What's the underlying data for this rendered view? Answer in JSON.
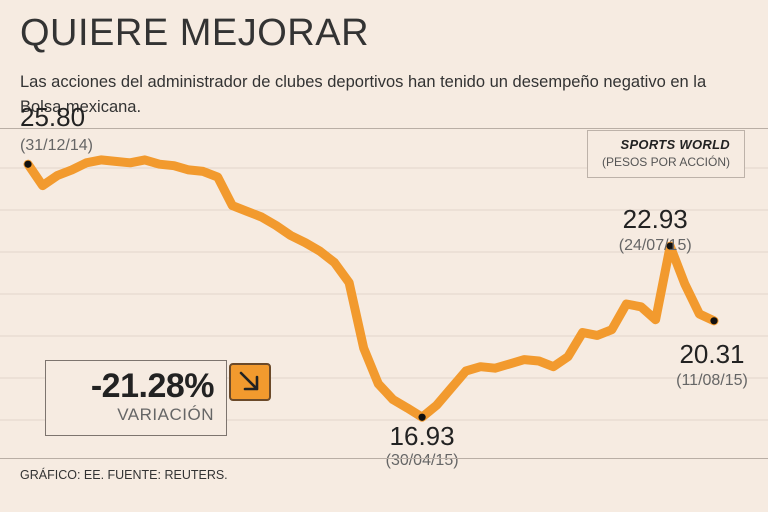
{
  "header": {
    "title": "QUIERE MEJORAR",
    "subtitle": "Las acciones del administrador de clubes deportivos han tenido un desempeño negativo en la Bolsa mexicana."
  },
  "legend": {
    "title": "SPORTS WORLD",
    "unit": "(PESOS POR ACCIÓN)"
  },
  "variation": {
    "value": "-21.28%",
    "label": "VARIACIÓN",
    "icon": "arrow-down-right-icon"
  },
  "footer": {
    "credit": "GRÁFICO: EE. FUENTE: REUTERS."
  },
  "colors": {
    "background": "#f6ebe1",
    "line": "#f29a2e",
    "grid": "#e2d6cc",
    "dot": "#111111"
  },
  "chart_data": {
    "type": "line",
    "title": "QUIERE MEJORAR",
    "xlabel": "",
    "ylabel": "Pesos por acción",
    "grid": true,
    "ylim": [
      15.5,
      27
    ],
    "series": [
      {
        "name": "SPORTS WORLD",
        "values": [
          25.8,
          25.05,
          25.4,
          25.6,
          25.85,
          25.95,
          25.9,
          25.85,
          25.95,
          25.8,
          25.75,
          25.6,
          25.55,
          25.35,
          24.35,
          24.15,
          23.95,
          23.65,
          23.3,
          23.05,
          22.75,
          22.35,
          21.65,
          19.35,
          18.1,
          17.55,
          17.25,
          16.93,
          17.35,
          17.95,
          18.55,
          18.7,
          18.65,
          18.8,
          18.95,
          18.9,
          18.7,
          19.05,
          19.9,
          19.8,
          20.0,
          20.9,
          20.8,
          20.35,
          22.93,
          21.6,
          20.55,
          20.31
        ]
      }
    ],
    "annotations": [
      {
        "value": "25.80",
        "date": "(31/12/14)"
      },
      {
        "value": "16.93",
        "date": "(30/04/15)"
      },
      {
        "value": "22.93",
        "date": "(24/07/15)"
      },
      {
        "value": "20.31",
        "date": "(11/08/15)"
      }
    ],
    "annotation_points": [
      0,
      27,
      44,
      47
    ]
  }
}
